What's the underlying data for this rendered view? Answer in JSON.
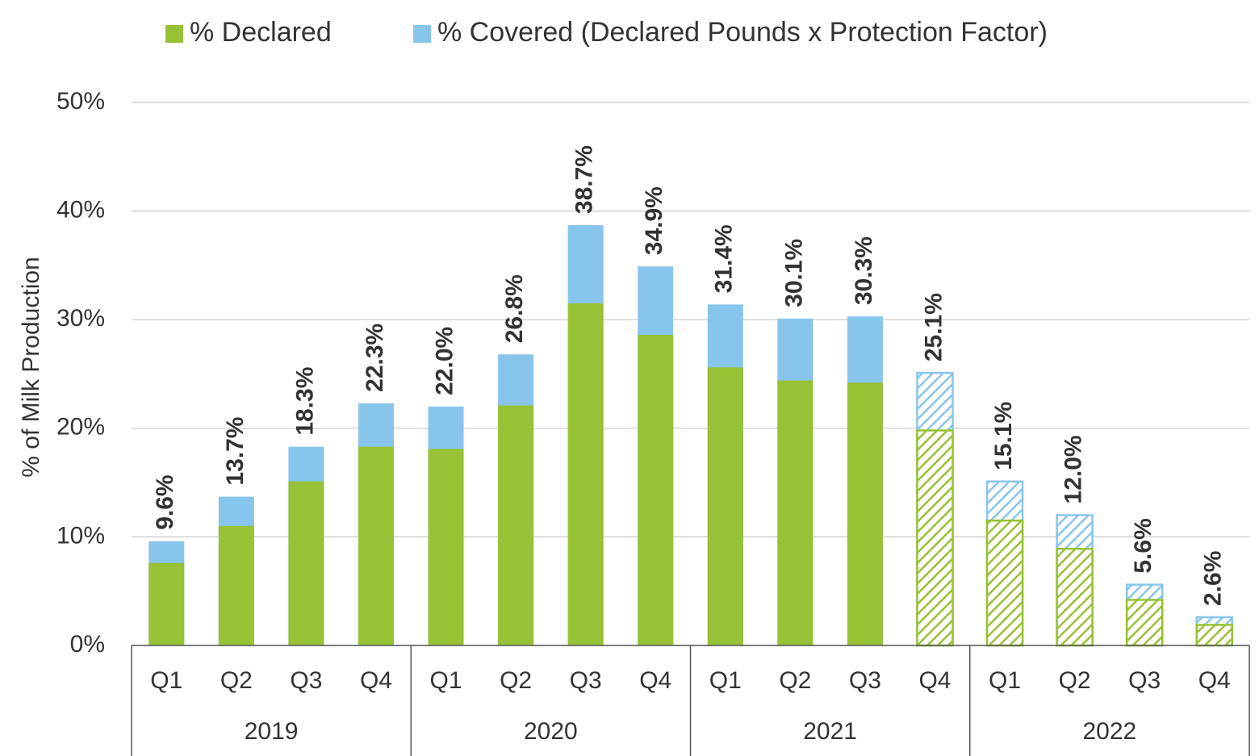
{
  "chart_data": {
    "type": "bar",
    "ylabel": "% of Milk Production",
    "categories": [
      "Q1",
      "Q2",
      "Q3",
      "Q4",
      "Q1",
      "Q2",
      "Q3",
      "Q4",
      "Q1",
      "Q2",
      "Q3",
      "Q4",
      "Q1",
      "Q2",
      "Q3",
      "Q4"
    ],
    "groups": [
      "2019",
      "2020",
      "2021",
      "2022"
    ],
    "series": [
      {
        "name": "% Declared",
        "color": "#97c235",
        "values": [
          7.6,
          11.0,
          15.1,
          18.3,
          18.1,
          22.1,
          31.5,
          28.6,
          25.6,
          24.4,
          24.2,
          19.8,
          11.5,
          8.9,
          4.2,
          1.9
        ]
      },
      {
        "name": "% Covered (Declared Pounds x Protection Factor)",
        "color": "#88c5ec",
        "values": [
          9.6,
          13.7,
          18.3,
          22.3,
          22.0,
          26.8,
          38.7,
          34.9,
          31.4,
          30.1,
          30.3,
          25.1,
          15.1,
          12.0,
          5.6,
          2.6
        ],
        "value_labels": [
          "9.6%",
          "13.7%",
          "18.3%",
          "22.3%",
          "22.0%",
          "26.8%",
          "38.7%",
          "34.9%",
          "31.4%",
          "30.1%",
          "30.3%",
          "25.1%",
          "15.1%",
          "12.0%",
          "5.6%",
          "2.6%"
        ]
      }
    ],
    "hatched": [
      false,
      false,
      false,
      false,
      false,
      false,
      false,
      false,
      false,
      false,
      false,
      true,
      true,
      true,
      true,
      true
    ],
    "ylim": [
      0,
      50
    ],
    "yticks": [
      {
        "value": 0,
        "label": "0%"
      },
      {
        "value": 10,
        "label": "10%"
      },
      {
        "value": 20,
        "label": "20%"
      },
      {
        "value": 30,
        "label": "30%"
      },
      {
        "value": 40,
        "label": "40%"
      },
      {
        "value": 50,
        "label": "50%"
      }
    ],
    "grid": true
  }
}
